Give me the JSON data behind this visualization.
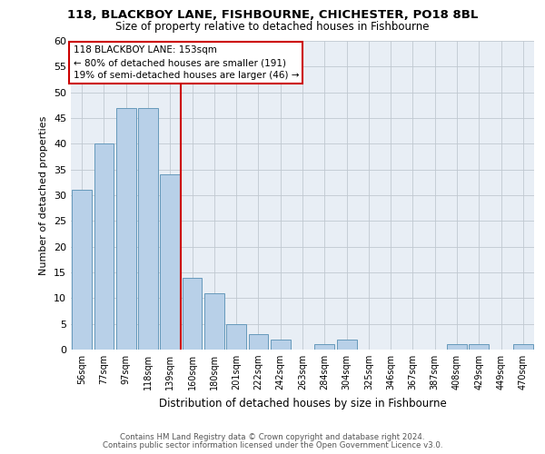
{
  "title": "118, BLACKBOY LANE, FISHBOURNE, CHICHESTER, PO18 8BL",
  "subtitle": "Size of property relative to detached houses in Fishbourne",
  "xlabel": "Distribution of detached houses by size in Fishbourne",
  "ylabel": "Number of detached properties",
  "categories": [
    "56sqm",
    "77sqm",
    "97sqm",
    "118sqm",
    "139sqm",
    "160sqm",
    "180sqm",
    "201sqm",
    "222sqm",
    "242sqm",
    "263sqm",
    "284sqm",
    "304sqm",
    "325sqm",
    "346sqm",
    "367sqm",
    "387sqm",
    "408sqm",
    "429sqm",
    "449sqm",
    "470sqm"
  ],
  "values": [
    31,
    40,
    47,
    47,
    34,
    14,
    11,
    5,
    3,
    2,
    0,
    1,
    2,
    0,
    0,
    0,
    0,
    1,
    1,
    0,
    1
  ],
  "bar_color": "#b8d0e8",
  "bar_edge_color": "#6699bb",
  "vline_x_index": 4.5,
  "vline_color": "#cc0000",
  "annotation_text": "118 BLACKBOY LANE: 153sqm\n← 80% of detached houses are smaller (191)\n19% of semi-detached houses are larger (46) →",
  "annotation_box_color": "#ffffff",
  "annotation_box_edge": "#cc0000",
  "ylim": [
    0,
    60
  ],
  "yticks": [
    0,
    5,
    10,
    15,
    20,
    25,
    30,
    35,
    40,
    45,
    50,
    55,
    60
  ],
  "bg_color": "#e8eef5",
  "footer_line1": "Contains HM Land Registry data © Crown copyright and database right 2024.",
  "footer_line2": "Contains public sector information licensed under the Open Government Licence v3.0."
}
